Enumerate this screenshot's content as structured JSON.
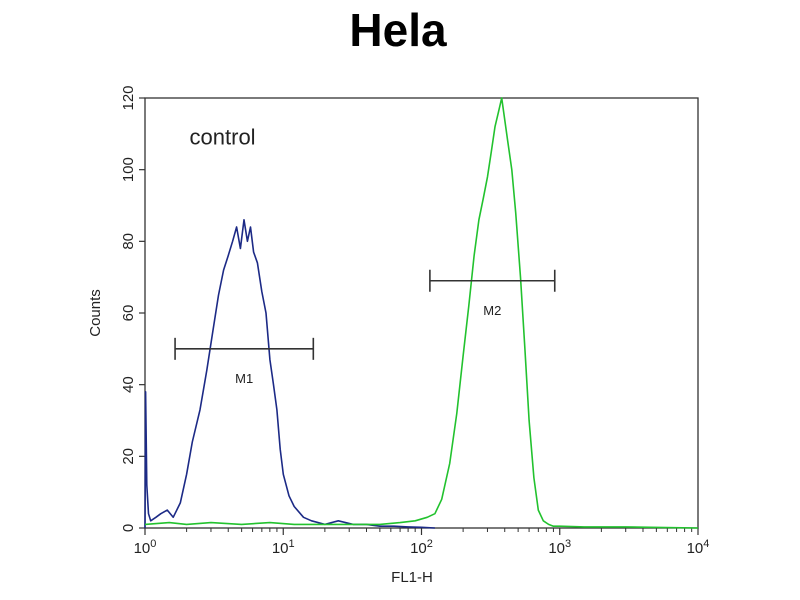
{
  "chart_data": {
    "type": "line",
    "title": "Hela",
    "xlabel": "FL1-H",
    "ylabel": "Counts",
    "xscale": "log",
    "xlim": [
      1,
      10000
    ],
    "ylim": [
      0,
      120
    ],
    "x_ticks": [
      {
        "value": 1,
        "base": "10",
        "exp": "0"
      },
      {
        "value": 10,
        "base": "10",
        "exp": "1"
      },
      {
        "value": 100,
        "base": "10",
        "exp": "2"
      },
      {
        "value": 1000,
        "base": "10",
        "exp": "3"
      },
      {
        "value": 10000,
        "base": "10",
        "exp": "4"
      }
    ],
    "y_ticks": [
      "0",
      "20",
      "40",
      "60",
      "80",
      "100",
      "120"
    ],
    "annotations": [
      {
        "text": "control",
        "x": 2.1,
        "y": 107
      }
    ],
    "markers": [
      {
        "label": "M1",
        "x_start": 1.65,
        "x_end": 16.5,
        "y": 50
      },
      {
        "label": "M2",
        "x_start": 115,
        "x_end": 920,
        "y": 69
      }
    ],
    "series": [
      {
        "color": "#1c2a86",
        "x": [
          1,
          1.01,
          1.03,
          1.06,
          1.1,
          1.2,
          1.3,
          1.45,
          1.6,
          1.8,
          2.0,
          2.2,
          2.5,
          2.8,
          3.1,
          3.4,
          3.7,
          4.0,
          4.3,
          4.6,
          4.9,
          5.2,
          5.5,
          5.8,
          6.1,
          6.5,
          7.0,
          7.5,
          8.0,
          8.5,
          9.0,
          9.5,
          10,
          11,
          12,
          14,
          16,
          20,
          25,
          32,
          40,
          50,
          63,
          80,
          100,
          125
        ],
        "y": [
          0,
          38,
          12,
          4,
          2,
          3,
          4,
          5,
          3,
          7,
          15,
          24,
          33,
          44,
          55,
          65,
          72,
          76,
          80,
          84,
          78,
          86,
          80,
          84,
          77,
          74,
          66,
          60,
          47,
          40,
          33,
          22,
          15,
          9,
          6,
          3,
          2,
          1,
          2,
          1,
          1,
          0.5,
          0.5,
          0.3,
          0.2,
          0
        ]
      },
      {
        "color": "#22c22e",
        "x": [
          1,
          1.5,
          2,
          3,
          5,
          8,
          12,
          20,
          30,
          50,
          70,
          90,
          110,
          125,
          140,
          160,
          180,
          200,
          220,
          240,
          260,
          280,
          300,
          320,
          340,
          360,
          380,
          400,
          420,
          450,
          480,
          520,
          560,
          600,
          650,
          700,
          760,
          830,
          900,
          1000,
          1500,
          3000,
          10000
        ],
        "y": [
          1,
          1.5,
          1,
          1.5,
          1,
          1.5,
          1,
          1,
          1,
          1,
          1.5,
          2,
          3,
          4,
          8,
          18,
          32,
          48,
          62,
          76,
          86,
          92,
          98,
          105,
          112,
          116,
          120,
          114,
          108,
          100,
          88,
          70,
          50,
          30,
          14,
          5,
          2,
          1,
          0.5,
          0.5,
          0.3,
          0.3,
          0
        ]
      }
    ]
  }
}
